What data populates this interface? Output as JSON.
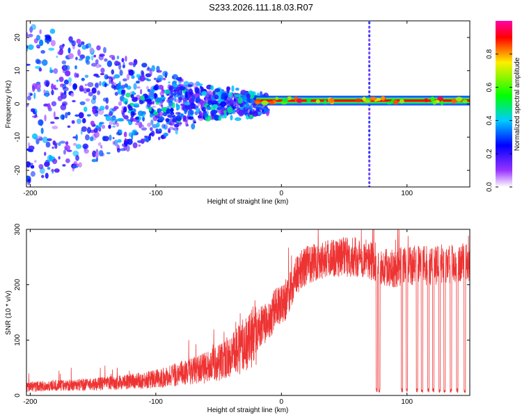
{
  "figure_title": "S233.2026.111.18.03.R07",
  "colors": {
    "snr_line": "#ee3333",
    "frame": "#000000"
  },
  "chart_data": [
    {
      "id": "spectrogram",
      "type": "heatmap",
      "title": "S233.2026.111.18.03.R07",
      "xlabel": "Height of straight line (km)",
      "ylabel": "Frequency (Hz)",
      "xlim": [
        -203,
        150
      ],
      "ylim": [
        -25,
        25
      ],
      "x_ticks": [
        -200,
        -100,
        0,
        100
      ],
      "y_ticks": [
        -20,
        -10,
        0,
        10,
        20
      ],
      "colorbar": {
        "label": "Normalized spectral amplitude",
        "range": [
          0.0,
          1.0
        ],
        "ticks": [
          0.0,
          0.2,
          0.4,
          0.6,
          0.8
        ],
        "colormap": "white-purple-blue-cyan-green-yellow-red-magenta"
      },
      "features": {
        "carrier_line": {
          "x_start": -20,
          "x_end": 150,
          "frequency_hz": 1,
          "amplitude": 0.9
        },
        "vertical_streak": {
          "x": 70,
          "amplitude": 0.25
        },
        "noise_region": {
          "x_start": -203,
          "x_end": -20,
          "amplitude_range": [
            0.05,
            0.4
          ]
        }
      }
    },
    {
      "id": "snr",
      "type": "line",
      "xlabel": "Height of straight line (km)",
      "ylabel": "SNR (10 * v/v)",
      "xlim": [
        -203,
        150
      ],
      "ylim": [
        0,
        300
      ],
      "x_ticks": [
        -200,
        -100,
        0,
        100
      ],
      "y_ticks": [
        0,
        100,
        200,
        300
      ],
      "series": [
        {
          "name": "SNR",
          "x": [
            -203,
            -180,
            -150,
            -120,
            -100,
            -80,
            -60,
            -40,
            -25,
            -15,
            -10,
            -5,
            0,
            5,
            10,
            15,
            20,
            30,
            40,
            50,
            60,
            70,
            76,
            80,
            90,
            100,
            110,
            120,
            130,
            140,
            150
          ],
          "values": [
            15,
            18,
            20,
            25,
            30,
            40,
            50,
            70,
            100,
            130,
            130,
            160,
            165,
            175,
            210,
            225,
            235,
            245,
            250,
            250,
            250,
            245,
            240,
            235,
            230,
            235,
            235,
            235,
            238,
            240,
            240
          ]
        }
      ],
      "dropouts_x": [
        76,
        78,
        96,
        100,
        108,
        112,
        117,
        121,
        126,
        130,
        135,
        140,
        146
      ]
    }
  ]
}
